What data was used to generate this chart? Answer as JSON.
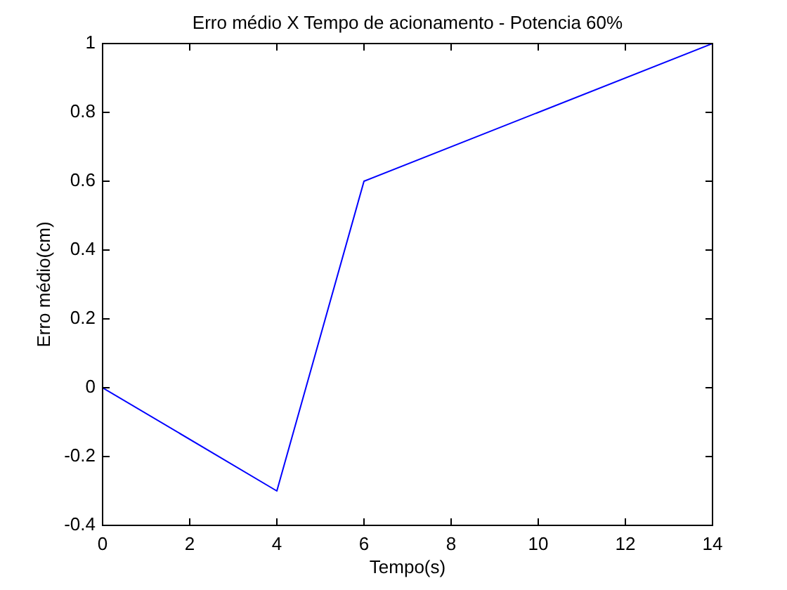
{
  "chart_data": {
    "type": "line",
    "title": "Erro médio X Tempo de acionamento - Potencia 60%",
    "xlabel": "Tempo(s)",
    "ylabel": "Erro médio(cm)",
    "x": [
      0,
      4,
      6,
      14
    ],
    "series": [
      {
        "color": "#0000ff",
        "values": [
          0,
          -0.3,
          0.6,
          1.0
        ]
      }
    ],
    "xlim": [
      0,
      14
    ],
    "xticks": [
      0,
      2,
      4,
      6,
      8,
      10,
      12,
      14
    ],
    "ylim": [
      -0.4,
      1
    ],
    "yticks": [
      -0.4,
      -0.2,
      0,
      0.2,
      0.4,
      0.6,
      0.8,
      1
    ]
  }
}
